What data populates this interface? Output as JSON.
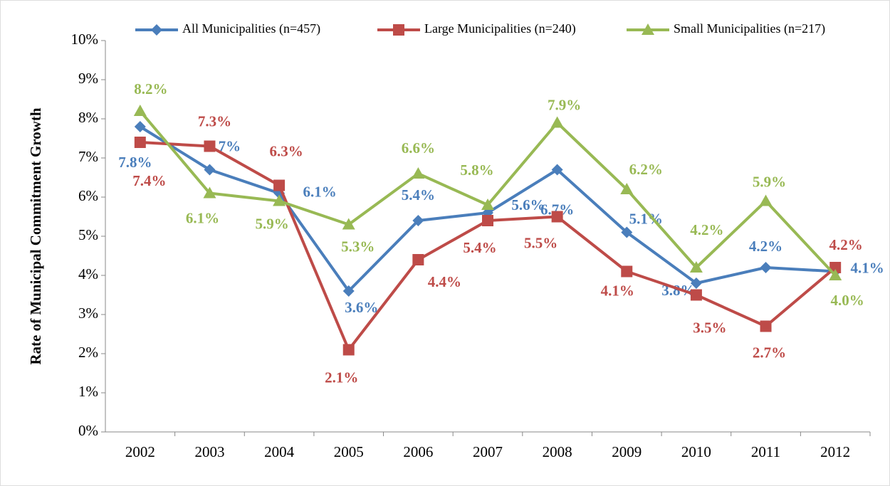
{
  "chart_data": {
    "type": "line",
    "y_label": "Rate of Municipal Commitment Growth",
    "categories": [
      "2002",
      "2003",
      "2004",
      "2005",
      "2006",
      "2007",
      "2008",
      "2009",
      "2010",
      "2011",
      "2012"
    ],
    "ylim": [
      0,
      10
    ],
    "yticks": [
      {
        "value": 0,
        "label": "0%"
      },
      {
        "value": 1,
        "label": "1%"
      },
      {
        "value": 2,
        "label": "2%"
      },
      {
        "value": 3,
        "label": "3%"
      },
      {
        "value": 4,
        "label": "4%"
      },
      {
        "value": 5,
        "label": "5%"
      },
      {
        "value": 6,
        "label": "6%"
      },
      {
        "value": 7,
        "label": "7%"
      },
      {
        "value": 8,
        "label": "8%"
      },
      {
        "value": 9,
        "label": "9%"
      },
      {
        "value": 10,
        "label": "10%"
      }
    ],
    "grid": false,
    "legend": "top",
    "series": [
      {
        "name": "All Municipalities (n=457)",
        "color": "#4a7ebb",
        "marker": "diamond",
        "values": [
          7.8,
          6.7,
          6.1,
          3.6,
          5.4,
          5.6,
          6.7,
          5.1,
          3.8,
          4.2,
          4.1
        ],
        "value_labels": [
          "7.8%",
          "6.7%",
          "6.1%",
          "3.6%",
          "5.4%",
          "5.6%",
          "6.7%",
          "5.1%",
          "3.8%",
          "4.2%",
          "4.1%"
        ]
      },
      {
        "name": "Large Municipalities (n=240)",
        "color": "#be4b48",
        "marker": "square",
        "values": [
          7.4,
          7.3,
          6.3,
          2.1,
          4.4,
          5.4,
          5.5,
          4.1,
          3.5,
          2.7,
          4.2
        ],
        "value_labels": [
          "7.4%",
          "7.3%",
          "6.3%",
          "2.1%",
          "4.4%",
          "5.4%",
          "5.5%",
          "4.1%",
          "3.5%",
          "2.7%",
          "4.2%"
        ]
      },
      {
        "name": "Small Municipalities (n=217)",
        "color": "#98b954",
        "marker": "triangle",
        "values": [
          8.2,
          6.1,
          5.9,
          5.3,
          6.6,
          5.8,
          7.9,
          6.2,
          4.2,
          5.9,
          4.0
        ],
        "value_labels": [
          "8.2%",
          "6.1%",
          "5.9%",
          "5.3%",
          "6.6%",
          "5.8%",
          "7.9%",
          "6.2%",
          "4.2%",
          "5.9%",
          "4.0%"
        ]
      }
    ]
  }
}
